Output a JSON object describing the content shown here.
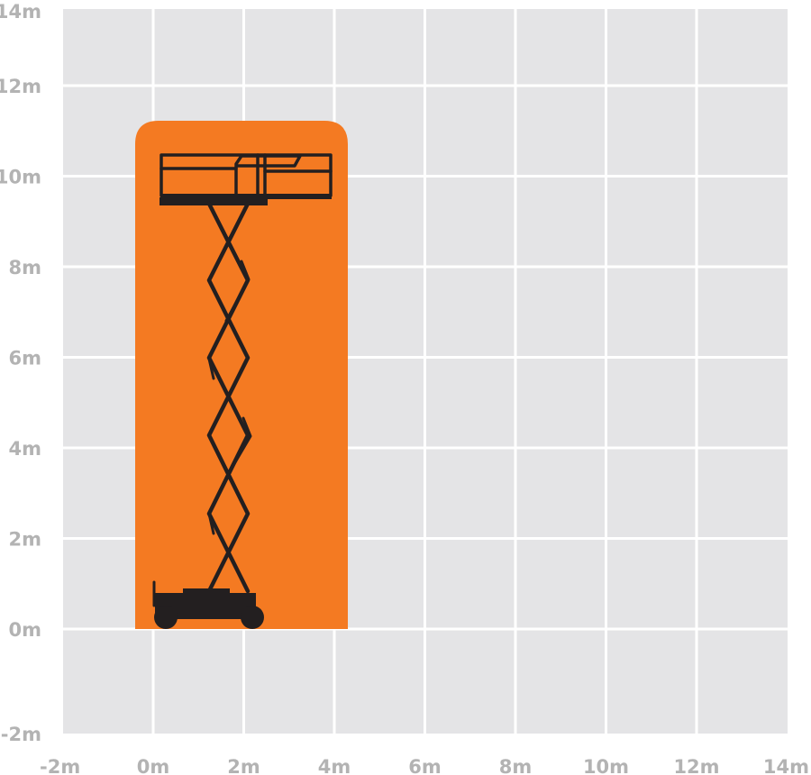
{
  "chart_data": {
    "type": "diagram",
    "x_ticks": [
      "-2m",
      "0m",
      "2m",
      "4m",
      "6m",
      "8m",
      "10m",
      "12m",
      "14m"
    ],
    "y_ticks": [
      "14m",
      "12m",
      "10m",
      "8m",
      "6m",
      "4m",
      "2m",
      "0m",
      "-2m"
    ],
    "xlim": [
      -2,
      14
    ],
    "ylim": [
      -2,
      14
    ],
    "grid": true,
    "working_envelope": {
      "x_range": [
        -0.4,
        4.3
      ],
      "y_range": [
        0,
        11.5
      ]
    },
    "machine": "scissor-lift"
  },
  "colors": {
    "background": "#e4e4e6",
    "grid": "#ffffff",
    "envelope": "#f47a22",
    "machine": "#231f20",
    "tick": "#b3b3b3"
  }
}
